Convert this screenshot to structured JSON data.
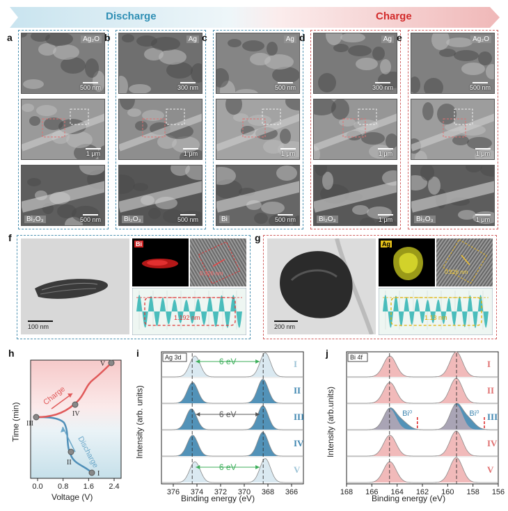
{
  "arrow": {
    "discharge_label": "Discharge",
    "charge_label": "Charge",
    "discharge_color": "#2f8fb4",
    "charge_color": "#d22b2b"
  },
  "sem_columns": [
    {
      "panel": "a",
      "top_tag": "Ag₂O",
      "top_scale": "500 nm",
      "mid_scale": "1 μm",
      "bottom_tag": "Bi₂O₃",
      "bottom_scale": "500 nm"
    },
    {
      "panel": "b",
      "top_tag": "Ag",
      "top_scale": "300 nm",
      "mid_scale": "1 μm",
      "bottom_tag": "Bi₂O₃",
      "bottom_scale": "500 nm"
    },
    {
      "panel": "c",
      "top_tag": "Ag",
      "top_scale": "500 nm",
      "mid_scale": "1 μm",
      "bottom_tag": "Bi",
      "bottom_scale": "500 nm"
    },
    {
      "panel": "d",
      "top_tag": "Ag",
      "top_scale": "300 nm",
      "mid_scale": "1 μm",
      "bottom_tag": "Bi₂O₃",
      "bottom_scale": "1 μm"
    },
    {
      "panel": "e",
      "top_tag": "Ag₂O",
      "top_scale": "500 nm",
      "mid_scale": "1 μm",
      "bottom_tag": "Bi₂O₃",
      "bottom_scale": "1 μm"
    }
  ],
  "panel_f": {
    "label": "f",
    "scale": "100 nm",
    "map_tag": "Bi",
    "d_spacing": "0.326 nm",
    "profile_label": "1.192 nm"
  },
  "panel_g": {
    "label": "g",
    "scale": "200 nm",
    "map_tag": "Ag",
    "d_spacing": "0.226 nm",
    "profile_label": "1.13 nm"
  },
  "panel_h": {
    "label": "h",
    "ylabel": "Time (min)",
    "xlabel": "Voltage (V)",
    "xticks": [
      "0.0",
      "0.8",
      "1.6",
      "2.4"
    ],
    "charge_label": "Charge",
    "discharge_label": "Discharge",
    "points": [
      "I",
      "II",
      "III",
      "IV",
      "V"
    ]
  },
  "panel_i": {
    "label": "i",
    "tag": "Ag 3d",
    "ylabel": "Intensity (arb. units)",
    "xlabel": "Binding energy (eV)",
    "xticks": [
      "376",
      "374",
      "372",
      "370",
      "368",
      "366"
    ],
    "spacing_labels": [
      "6 eV",
      "6 eV",
      "6 eV"
    ],
    "row_labels": [
      "I",
      "II",
      "III",
      "IV",
      "V"
    ]
  },
  "panel_j": {
    "label": "j",
    "tag": "Bi 4f",
    "ylabel": "Intensity (arb.units)",
    "xlabel": "Binding energy (eV)",
    "xticks": [
      "168",
      "166",
      "164",
      "162",
      "160",
      "158",
      "156"
    ],
    "bi0_labels": [
      "Bi⁰",
      "Bi⁰"
    ],
    "row_labels": [
      "I",
      "II",
      "III",
      "IV",
      "V"
    ]
  }
}
